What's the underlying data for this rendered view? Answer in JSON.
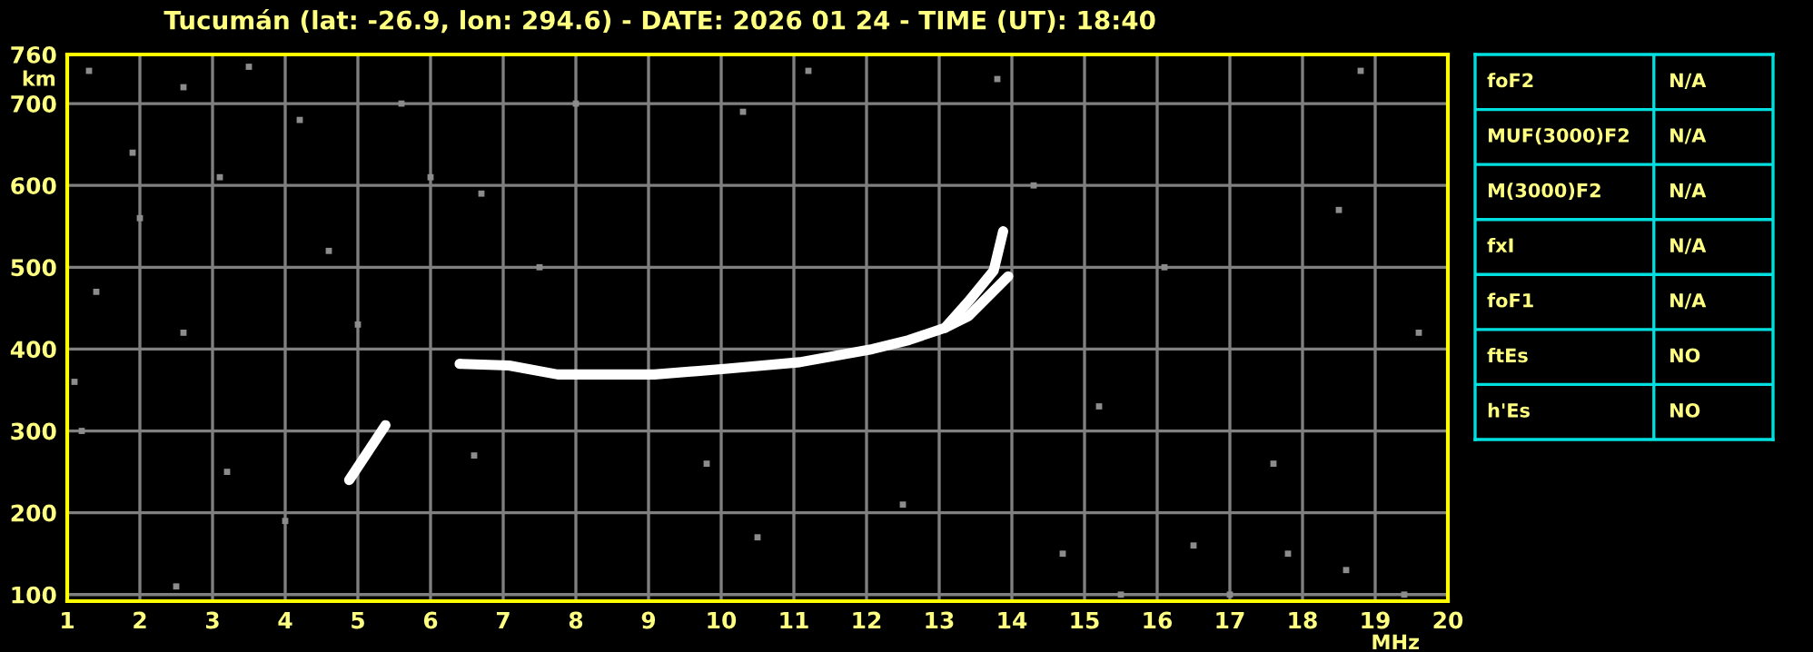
{
  "chart_data": [
    {
      "type": "line",
      "title": "Tucumán (lat: -26.9, lon: 294.6) - DATE: 2026 01 24 - TIME (UT): 18:40",
      "xlabel": "MHz",
      "ylabel": "km",
      "xlim": [
        1,
        20
      ],
      "ylim": [
        92,
        760
      ],
      "xticks": [
        1,
        2,
        3,
        4,
        5,
        6,
        7,
        8,
        9,
        10,
        11,
        12,
        13,
        14,
        15,
        16,
        17,
        18,
        19,
        20
      ],
      "yticks": [
        100,
        200,
        300,
        400,
        500,
        600,
        700,
        760
      ],
      "grid": true,
      "series": [
        {
          "type": "scatter",
          "color": "#8c8c8c",
          "marker": "square",
          "x": [
            1.3,
            2.6,
            3.5,
            5.6,
            4.2,
            8.0,
            10.3,
            11.2,
            13.8,
            18.8,
            1.9,
            3.1,
            6.0,
            6.7,
            14.3,
            18.5,
            2.0,
            4.6,
            1.4,
            7.5,
            16.1,
            19.6,
            2.6,
            5.0,
            15.2,
            17.6,
            3.2,
            4.0,
            6.6,
            9.8,
            12.5,
            14.7,
            16.5,
            17.8,
            18.6,
            15.5,
            17.0,
            19.4,
            2.5,
            10.5,
            1.2,
            1.1
          ],
          "values": [
            740,
            720,
            745,
            700,
            680,
            700,
            690,
            740,
            730,
            740,
            640,
            610,
            610,
            590,
            600,
            570,
            560,
            520,
            470,
            500,
            500,
            420,
            420,
            430,
            330,
            260,
            250,
            190,
            270,
            260,
            210,
            150,
            160,
            150,
            130,
            100,
            100,
            100,
            110,
            170,
            300,
            360
          ]
        },
        {
          "type": "line",
          "color": "#ffffff",
          "x": [
            6.4,
            7.08,
            7.75,
            9.08,
            10.08,
            11.08,
            12.08,
            12.58,
            13.08,
            13.4,
            13.75,
            13.88
          ],
          "values": [
            382,
            380,
            369,
            369,
            376,
            384,
            400,
            411,
            426,
            458,
            496,
            544
          ]
        },
        {
          "type": "line",
          "color": "#ffffff",
          "x": [
            13.08,
            13.4,
            13.95
          ],
          "values": [
            426,
            440,
            489
          ]
        },
        {
          "type": "line",
          "color": "#ffffff",
          "x": [
            4.88,
            5.38
          ],
          "values": [
            240,
            307
          ]
        }
      ]
    },
    {
      "type": "other",
      "categories": [
        "foF2",
        "MUF(3000)F2",
        "M(3000)F2",
        "fxI",
        "foF1",
        "ftEs",
        "h'Es"
      ],
      "annotations": [
        "N/A",
        "N/A",
        "N/A",
        "N/A",
        "N/A",
        "NO",
        "NO"
      ]
    }
  ]
}
